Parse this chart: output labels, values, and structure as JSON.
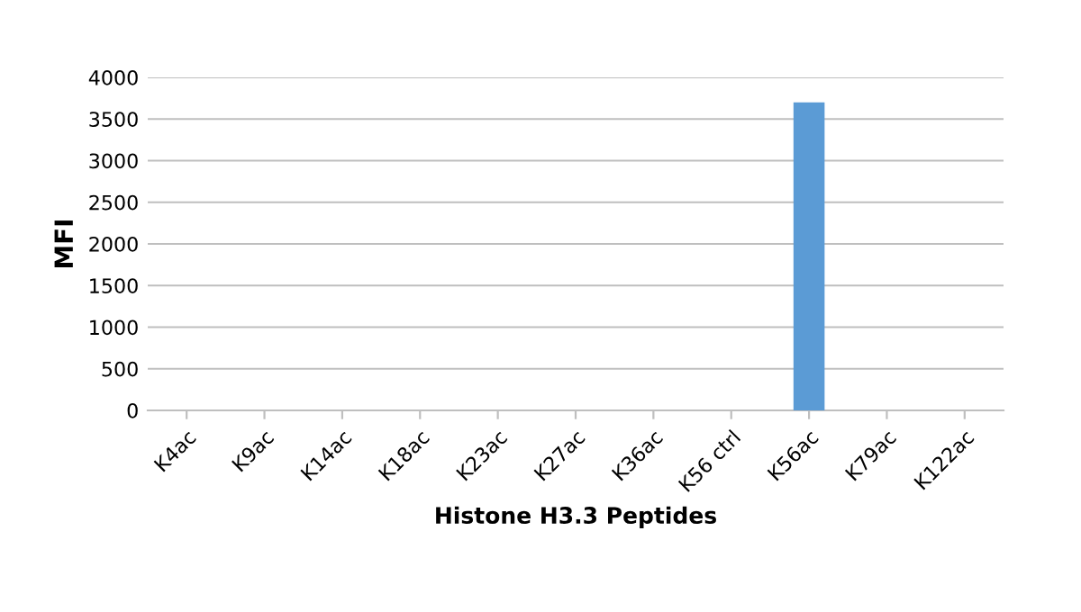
{
  "chart_data": {
    "type": "bar",
    "xlabel": "Histone H3.3 Peptides",
    "ylabel": "MFI",
    "categories": [
      "K4ac",
      "K9ac",
      "K14ac",
      "K18ac",
      "K23ac",
      "K27ac",
      "K36ac",
      "K56 ctrl",
      "K56ac",
      "K79ac",
      "K122ac"
    ],
    "values": [
      0,
      0,
      0,
      0,
      0,
      0,
      0,
      0,
      3700,
      0,
      0
    ],
    "color": "#5b9bd5",
    "ylim": [
      0,
      4000
    ],
    "yticks": [
      0,
      500,
      1000,
      1500,
      2000,
      2500,
      3000,
      3500,
      4000
    ],
    "grid": "y"
  }
}
